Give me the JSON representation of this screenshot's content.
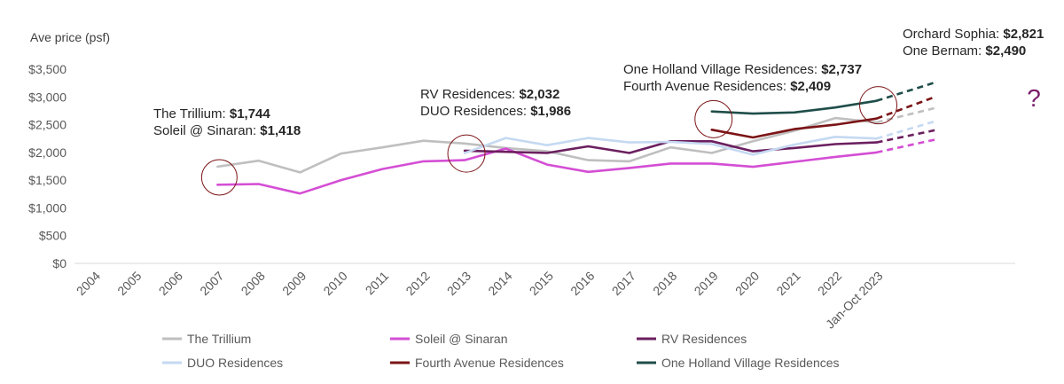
{
  "chart_data": {
    "type": "line",
    "ylabel": "Ave price (psf)",
    "ylim": [
      0,
      3500
    ],
    "yticks": [
      0,
      500,
      1000,
      1500,
      2000,
      2500,
      3000,
      3500
    ],
    "ytick_labels": [
      "$0",
      "$500",
      "$1,000",
      "$1,500",
      "$2,000",
      "$2,500",
      "$3,000",
      "$3,500"
    ],
    "categories": [
      "2004",
      "2005",
      "2006",
      "2007",
      "2008",
      "2009",
      "2010",
      "2011",
      "2012",
      "2013",
      "2014",
      "2015",
      "2016",
      "2017",
      "2018",
      "2019",
      "2020",
      "2021",
      "2022",
      "Jan-Oct 2023"
    ],
    "grid": false,
    "legend_position": "bottom",
    "projection_marker": "?",
    "series": [
      {
        "name": "The Trillium",
        "color": "#BFBFBF",
        "values": [
          null,
          null,
          null,
          1744,
          1850,
          1640,
          1980,
          2090,
          2210,
          2160,
          2080,
          2020,
          1860,
          1840,
          2090,
          1990,
          2200,
          2390,
          2620,
          2540
        ],
        "projection": 2800
      },
      {
        "name": "Soleil @ Sinaran",
        "color": "#D44ED4",
        "values": [
          null,
          null,
          null,
          1418,
          1430,
          1260,
          1500,
          1700,
          1840,
          1860,
          2070,
          1780,
          1650,
          1720,
          1800,
          1800,
          1740,
          1830,
          1920,
          2000
        ],
        "projection": 2230
      },
      {
        "name": "RV Residences",
        "color": "#6B1F5F",
        "values": [
          null,
          null,
          null,
          null,
          null,
          null,
          null,
          null,
          null,
          2032,
          2010,
          1990,
          2110,
          1990,
          2200,
          2200,
          2020,
          2080,
          2150,
          2180
        ],
        "projection": 2400
      },
      {
        "name": "DUO Residences",
        "color": "#C5D9F1",
        "values": [
          null,
          null,
          null,
          null,
          null,
          null,
          null,
          null,
          null,
          1986,
          2260,
          2130,
          2260,
          2180,
          2190,
          2150,
          1960,
          2140,
          2280,
          2250
        ],
        "projection": 2560
      },
      {
        "name": "Fourth Avenue Residences",
        "color": "#7B1416",
        "values": [
          null,
          null,
          null,
          null,
          null,
          null,
          null,
          null,
          null,
          null,
          null,
          null,
          null,
          null,
          null,
          2409,
          2270,
          2420,
          2500,
          2610
        ],
        "projection": 3000
      },
      {
        "name": "One Holland Village Residences",
        "color": "#1F4E4A",
        "values": [
          null,
          null,
          null,
          null,
          null,
          null,
          null,
          null,
          null,
          null,
          null,
          null,
          null,
          null,
          null,
          2737,
          2700,
          2720,
          2810,
          2930
        ],
        "projection": 3260
      }
    ],
    "annotations": [
      {
        "lines": [
          {
            "name": "The Trillium: ",
            "value": "$1,744"
          },
          {
            "name": "Soleil @ Sinaran: ",
            "value": "$1,418"
          }
        ]
      },
      {
        "lines": [
          {
            "name": "RV Residences: ",
            "value": "$2,032"
          },
          {
            "name": "DUO Residences: ",
            "value": "$1,986"
          }
        ]
      },
      {
        "lines": [
          {
            "name": "One Holland Village Residences: ",
            "value": "$2,737"
          },
          {
            "name": "Fourth Avenue Residences: ",
            "value": "$2,409"
          }
        ]
      },
      {
        "lines": [
          {
            "name": "Orchard Sophia: ",
            "value": "$2,821"
          },
          {
            "name": "One Bernam: ",
            "value": "$2,490"
          }
        ]
      }
    ]
  }
}
